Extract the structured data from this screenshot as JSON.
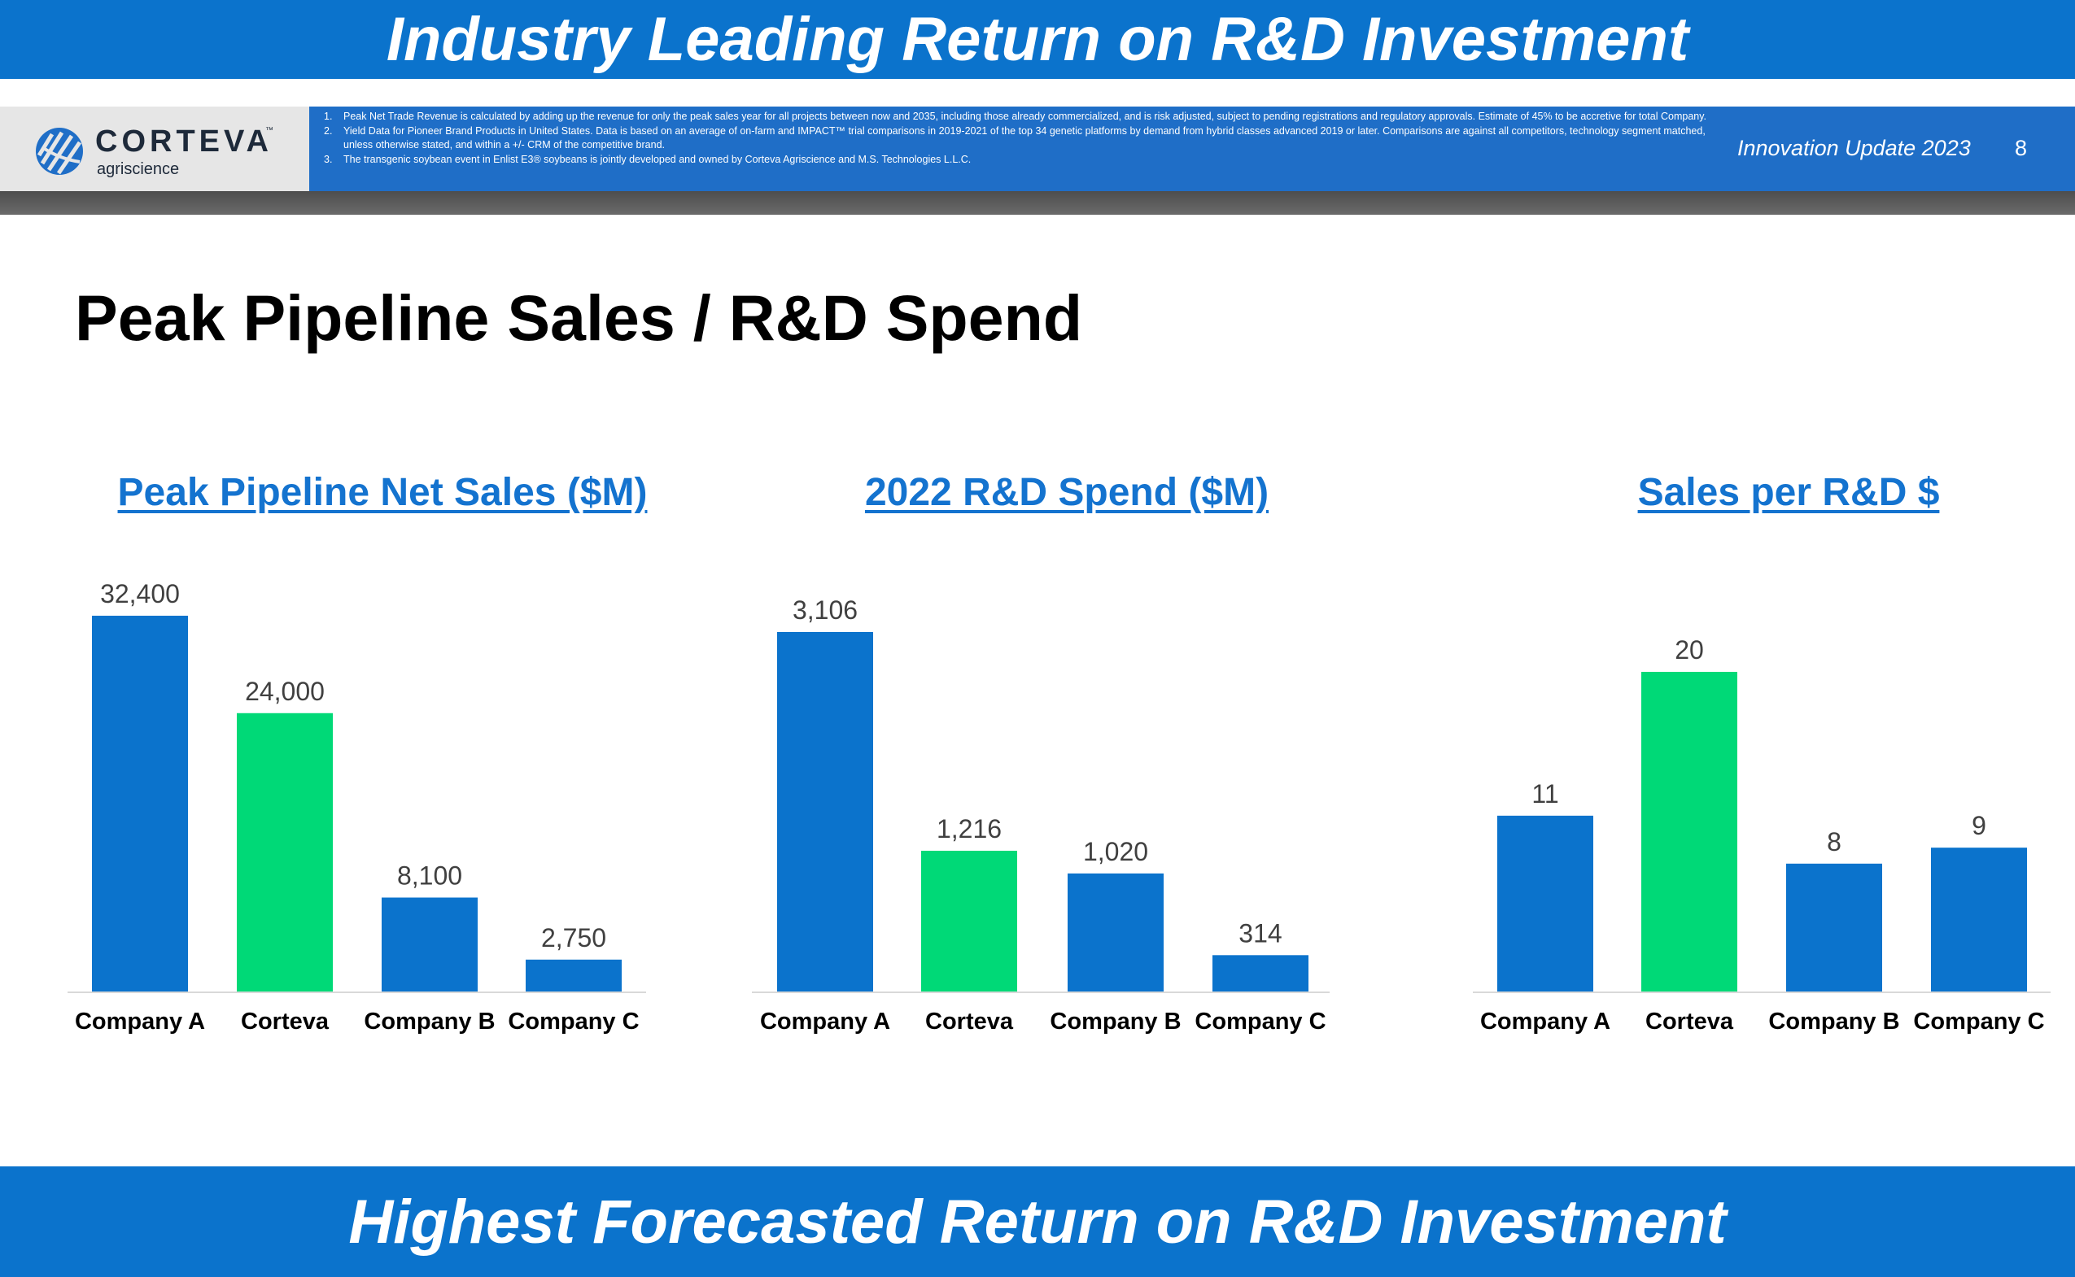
{
  "header": {
    "banner_title": "Industry Leading Return on R&D Investment"
  },
  "info_bar": {
    "logo_word": "CORTEVA",
    "logo_tm": "™",
    "logo_sub": "agriscience",
    "footnotes": [
      {
        "num": "1.",
        "text": "Peak Net Trade Revenue is calculated by adding up the revenue for only the peak sales year for all projects between now and 2035, including those already commercialized, and is risk adjusted, subject to pending registrations and regulatory approvals. Estimate of 45% to be accretive for total Company."
      },
      {
        "num": "2.",
        "text": "Yield Data for Pioneer Brand Products in United States. Data is based on an average of on-farm and IMPACT™ trial comparisons in 2019-2021 of  the top 34 genetic platforms by demand from hybrid classes advanced 2019 or later. Comparisons are against all competitors, technology segment matched, unless otherwise stated, and within a +/- CRM of the competitive brand."
      },
      {
        "num": "3.",
        "text": "The transgenic soybean event in Enlist E3® soybeans is jointly developed and owned by Corteva Agriscience and M.S. Technologies L.L.C."
      }
    ],
    "meta_label": "Innovation Update 2023",
    "page_number": "8"
  },
  "slide": {
    "title": "Peak Pipeline Sales / R&D Spend"
  },
  "colors": {
    "blue": "#0b73cc",
    "green": "#00d977",
    "title_blue": "#1473cf"
  },
  "chart_data": [
    {
      "type": "bar",
      "title": "Peak Pipeline Net Sales ($M)",
      "categories": [
        "Company A",
        "Corteva",
        "Company B",
        "Company C"
      ],
      "values": [
        32400,
        24000,
        8100,
        2750
      ],
      "value_labels": [
        "32,400",
        "24,000",
        "8,100",
        "2,750"
      ],
      "highlight": "Corteva",
      "grid": false,
      "legend": "none"
    },
    {
      "type": "bar",
      "title": "2022 R&D Spend ($M)",
      "categories": [
        "Company A",
        "Corteva",
        "Company B",
        "Company C"
      ],
      "values": [
        3106,
        1216,
        1020,
        314
      ],
      "value_labels": [
        "3,106",
        "1,216",
        "1,020",
        "314"
      ],
      "highlight": "Corteva",
      "grid": false,
      "legend": "none"
    },
    {
      "type": "bar",
      "title": "Sales per R&D $",
      "categories": [
        "Company A",
        "Corteva",
        "Company B",
        "Company C"
      ],
      "values": [
        11,
        20,
        8,
        9
      ],
      "value_labels": [
        "11",
        "20",
        "8",
        "9"
      ],
      "highlight": "Corteva",
      "grid": false,
      "legend": "none"
    }
  ],
  "footer": {
    "banner_title": "Highest Forecasted Return on R&D Investment"
  }
}
